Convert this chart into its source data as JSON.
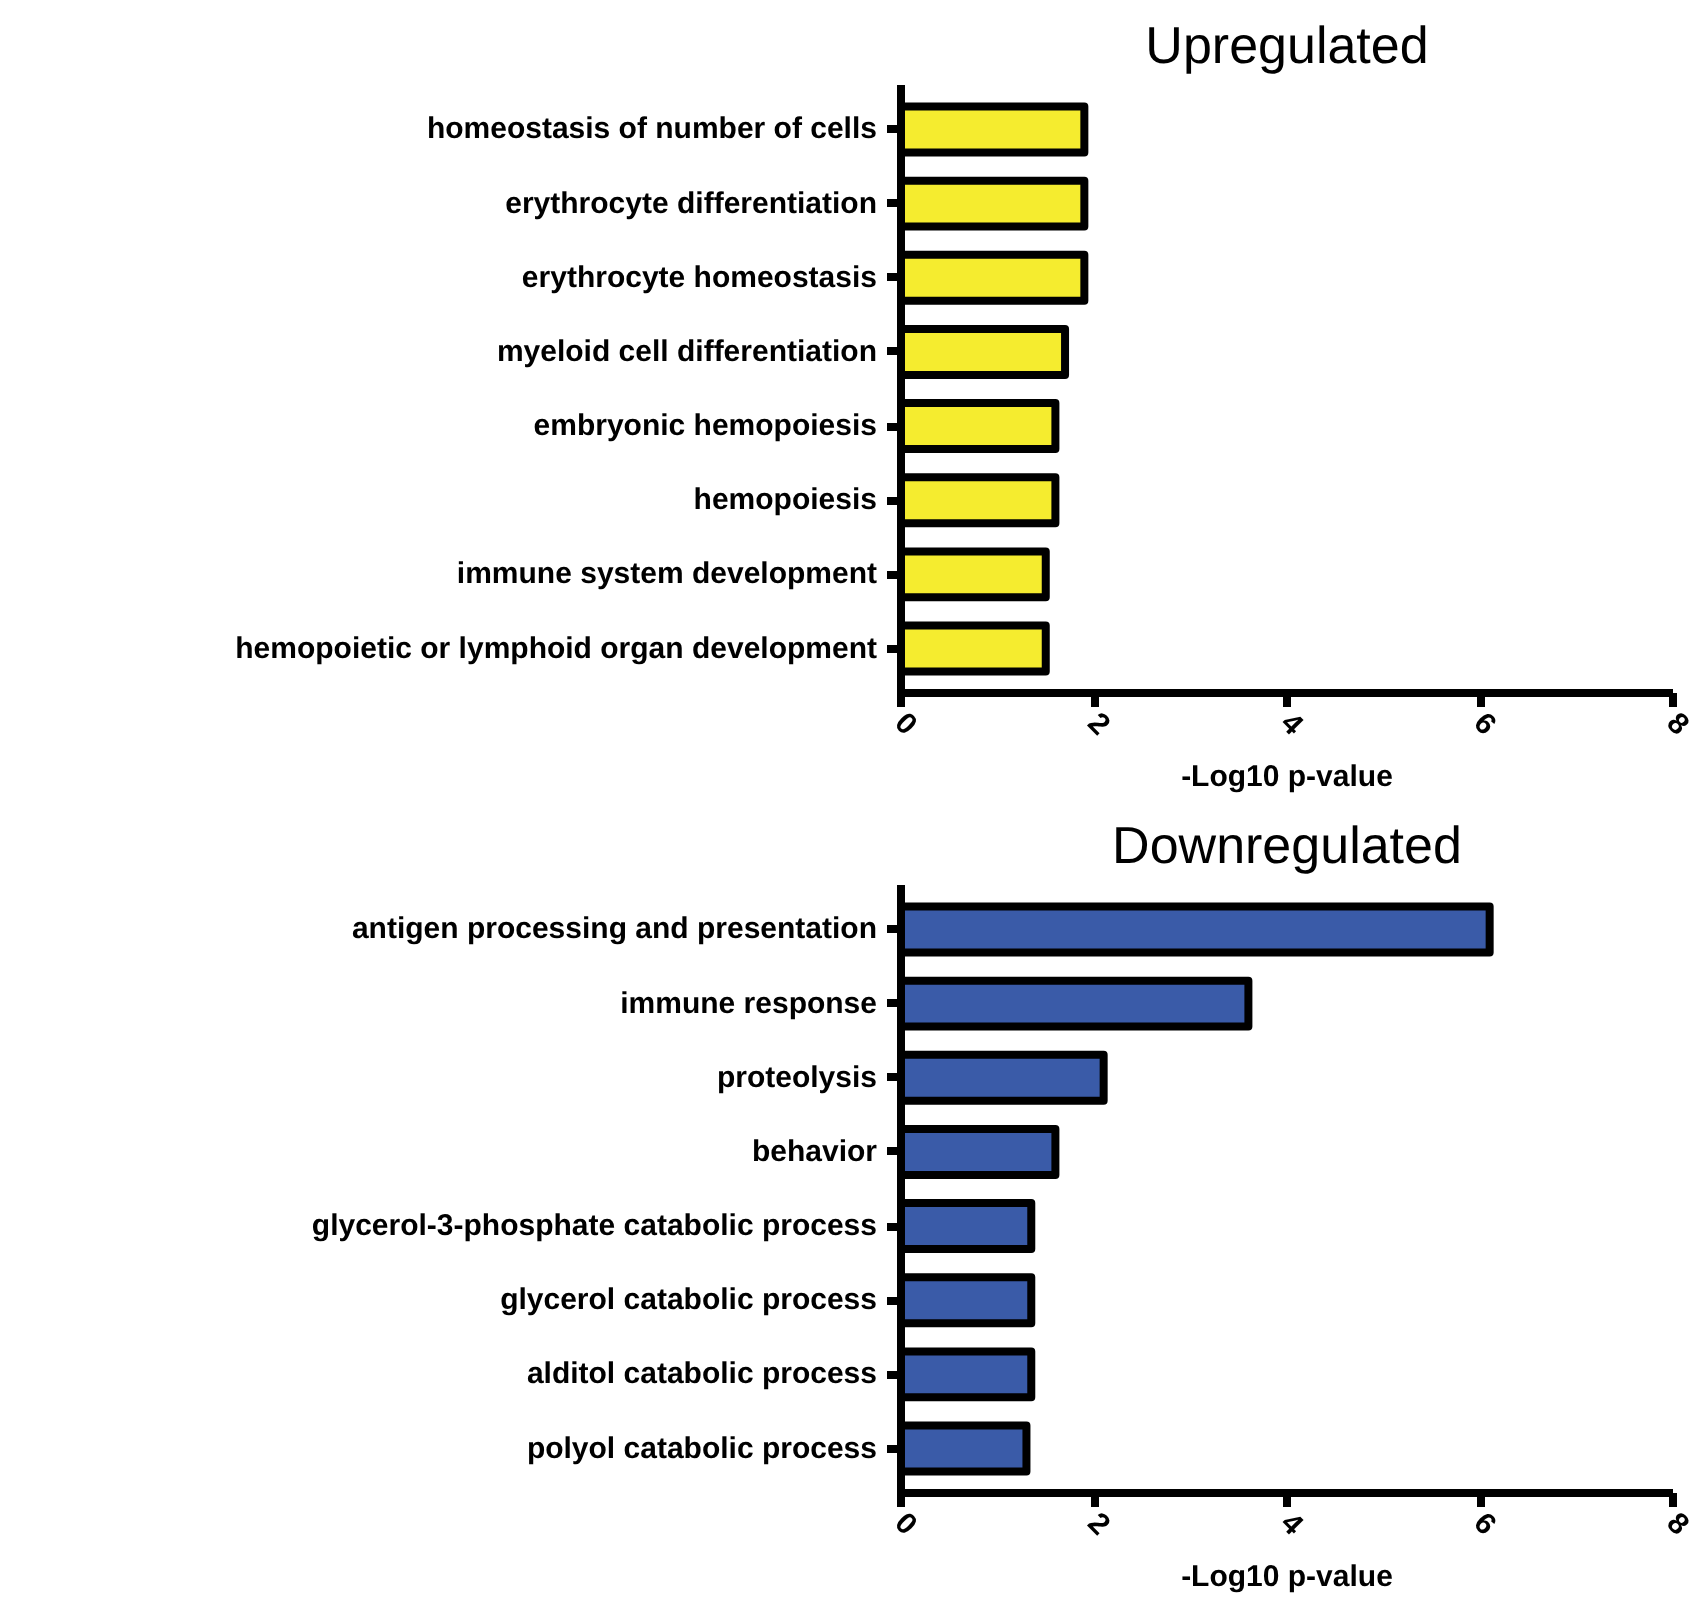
{
  "chart_data": [
    {
      "type": "bar",
      "orientation": "horizontal",
      "title": "Upregulated",
      "xlabel": "-Log10 p-value",
      "categories": [
        "homeostasis of number of cells",
        "erythrocyte differentiation",
        "erythrocyte homeostasis",
        "myeloid cell differentiation",
        "embryonic hemopoiesis",
        "hemopoiesis",
        "immune system development",
        "hemopoietic or lymphoid organ development"
      ],
      "series": [
        {
          "color": "#f5ec2f",
          "values": [
            1.9,
            1.9,
            1.9,
            1.7,
            1.6,
            1.6,
            1.5,
            1.5
          ]
        }
      ],
      "xlim": [
        0,
        8
      ],
      "xticks": [
        0,
        2,
        4,
        6,
        8
      ],
      "grid": false
    },
    {
      "type": "bar",
      "orientation": "horizontal",
      "title": "Downregulated",
      "xlabel": "-Log10 p-value",
      "categories": [
        "antigen processing and presentation",
        "immune response",
        "proteolysis",
        "behavior",
        "glycerol-3-phosphate catabolic process",
        "glycerol catabolic process",
        "alditol catabolic process",
        "polyol catabolic process"
      ],
      "series": [
        {
          "color": "#3a5ba8",
          "values": [
            6.1,
            3.6,
            2.1,
            1.6,
            1.35,
            1.35,
            1.35,
            1.3
          ]
        }
      ],
      "xlim": [
        0,
        8
      ],
      "xticks": [
        0,
        2,
        4,
        6,
        8
      ],
      "grid": false
    }
  ]
}
